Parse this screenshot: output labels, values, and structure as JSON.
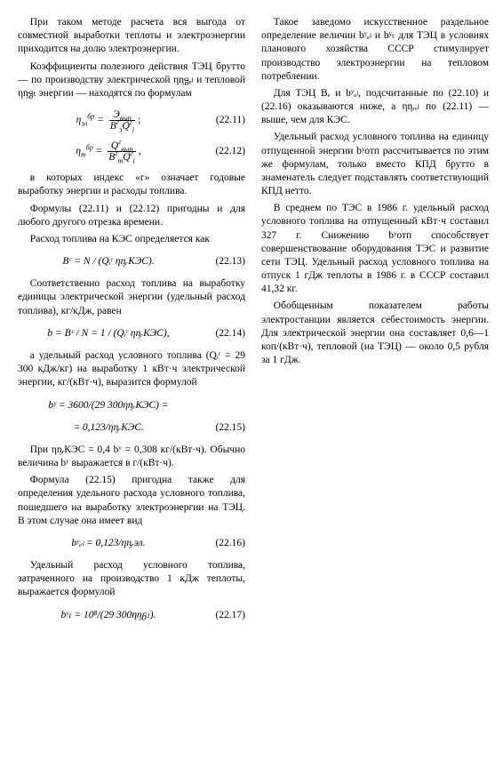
{
  "left": {
    "p1": "При таком методе расчета вся выгода от совместной выработки теплоты и электроэнергии приходится на долю электроэнергии.",
    "p2": "Коэффициенты полезного действия ТЭЦ брутто — по производству электрической ηᶇᵷₑₗ и тепловой ηᶇᵷₜ энергии — находятся по формулам",
    "eq1": {
      "lhs": "η",
      "sub1": "эл",
      "sup1": "бр",
      "eq": " = ",
      "num": "Э",
      "numsub": "выр",
      "den": "B",
      "densup": "г",
      "densub": "э",
      "den2": "Q",
      "den2sup": "г",
      "den2sub": "i",
      "tail": ";",
      "num_label": "(22.11)"
    },
    "eq2": {
      "lhs": "η",
      "sub1": "т",
      "sup1": "бр",
      "eq": " = ",
      "num": "Q",
      "numsup": "г",
      "numsub": "выр",
      "den": "B",
      "densup": "г",
      "densub": "т",
      "den2": "Q",
      "den2sup": "г",
      "den2sub": "i",
      "tail": ",",
      "num_label": "(22.12)"
    },
    "p3": "в которых индекс «г» означает годовые выработку энергии и расходы топлива.",
    "p4": "Формулы (22.11) и (22.12) пригодны и для любого другого отрезка времени.",
    "p5": "Расход топлива на КЭС определяется как",
    "eq3": {
      "text": "Bᶜ = N / (Qᵢʳ ηᶇᵣКЭС).",
      "num_label": "(22.13)"
    },
    "p6": "Соответственно расход топлива на выработку единицы электрической энергии (удельный расход топлива), кг/кДж, равен",
    "eq4": {
      "text": "b = Bᶜ / N = 1 / (Qᵢʳ ηᶇᵣКЭС),",
      "num_label": "(22.14)"
    },
    "p7": "а удельный расход условного топлива (Qᵢʳ = 29 300 кДж/кг) на выработку 1 кВт·ч электрической энергии, кг/(кВт·ч), выразится формулой",
    "eq5a": {
      "text": "bʸ = 3600/(29 300ηᶇᵣКЭС) ="
    },
    "eq5b": {
      "text": "= 0,123/ηᶇᵣКЭС.",
      "num_label": "(22.15)"
    },
    "p8": "При ηᶇᵣКЭС = 0,4 bʸ = 0,308 кг/(кВт·ч). Обычно величина bʸ выражается в г/(кВт·ч).",
    "p9": "Формула (22.15) пригодна также для определения удельного расхода условного топлива, пошедшего на выработку электроэнергии на ТЭЦ. В этом случае она имеет вид",
    "eq6": {
      "text": "bʸₑₗ = 0,123/ηᶇᵣэл.",
      "num_label": "(22.16)"
    },
    "p10": "Удельный расход условного топлива, затраченного на производство 1 кДж теплоты, выражается формулой",
    "eq7": {
      "text": "bʸₜ = 10⁸/(29 300ηᶇᵷₜ).",
      "num_label": "(22.17)"
    }
  },
  "right": {
    "p1": "Такое заведомо искусственное раздельное определение величин bʸₑₗ и bʸₜ для ТЭЦ в условиях планового хозяйства СССР стимулирует производство электроэнергии на тепловом потреблении.",
    "p2": "Для ТЭЦ Bₑ и bʸₑₗ, подсчитанные по (22.10) и (22.16) оказываются ниже, а ηᶇᵣₑₗ по (22.11) — выше, чем для КЭС.",
    "p3": "Удельный расход условного топлива на единицу отпущенной энергии bʸотп рассчитывается по этим же формулам, только вместо КПД брутто в знаменатель следует подставлять соответствующий КПД нетто.",
    "p4": "В среднем по ТЭС в 1986 г. удельный расход условного топлива на отпущенный кВт·ч составил 327 г. Снижению bʸотп способствует совершенствование оборудования ТЭС и развитие сети ТЭЦ. Удельный расход условного топлива на отпуск 1 гДж теплоты в 1986 г. в СССР составил 41,32 кг.",
    "p5": "Обобщенным показателем работы электростанции является себестоимость энергии. Для электрической энергии она составляет 0,6—1 коп/(кВт·ч), тепловой (на ТЭЦ) — около 0,5 рубля за 1 гДж."
  }
}
